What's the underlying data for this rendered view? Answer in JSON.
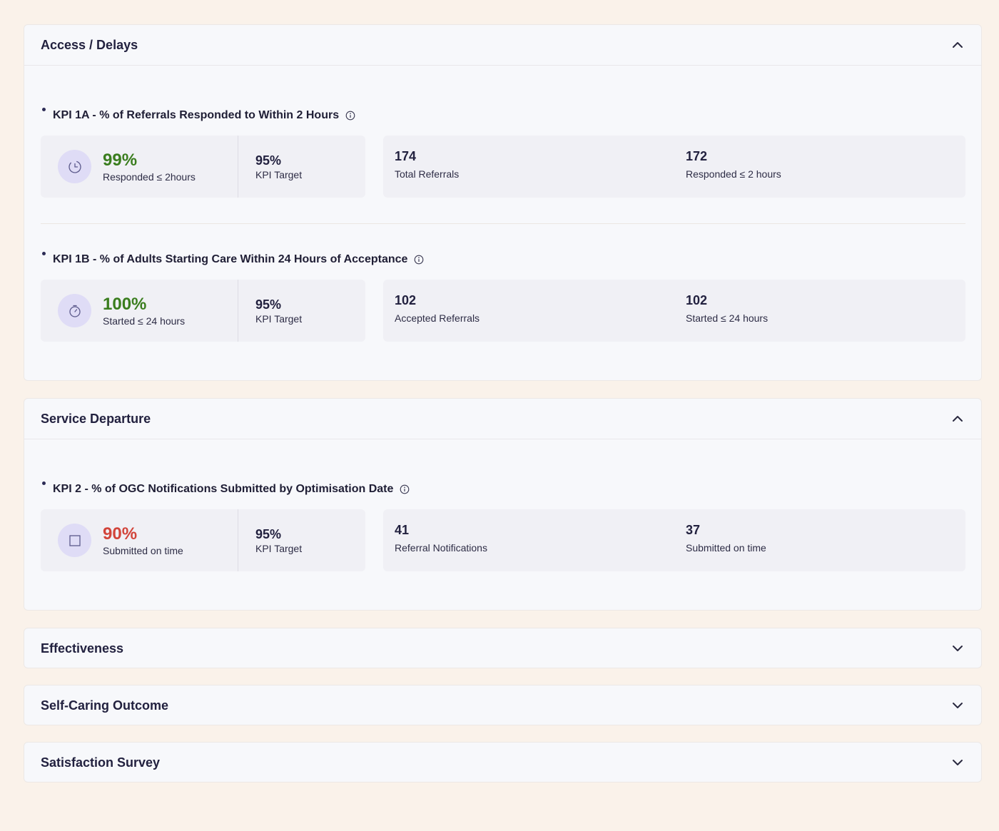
{
  "sections": [
    {
      "title": "Access / Delays",
      "expanded": true,
      "kpis": [
        {
          "title": "KPI 1A - % of Referrals Responded to Within 2 Hours",
          "icon": "clock-icon",
          "percent": "99%",
          "percent_status": "good",
          "percent_label": "Responded ≤ 2hours",
          "target_value": "95%",
          "target_label": "KPI Target",
          "stat1_value": "174",
          "stat1_label": "Total Referrals",
          "stat2_value": "172",
          "stat2_label": "Responded ≤ 2 hours"
        },
        {
          "title": "KPI 1B - % of Adults Starting Care Within 24 Hours of Acceptance",
          "icon": "stopwatch-icon",
          "percent": "100%",
          "percent_status": "good",
          "percent_label": "Started ≤ 24 hours",
          "target_value": "95%",
          "target_label": "KPI Target",
          "stat1_value": "102",
          "stat1_label": "Accepted Referrals",
          "stat2_value": "102",
          "stat2_label": "Started ≤ 24 hours"
        }
      ]
    },
    {
      "title": "Service Departure",
      "expanded": true,
      "kpis": [
        {
          "title": "KPI 2 - % of OGC Notifications Submitted by Optimisation Date",
          "icon": "checkbox-icon",
          "percent": "90%",
          "percent_status": "bad",
          "percent_label": "Submitted on time",
          "target_value": "95%",
          "target_label": "KPI Target",
          "stat1_value": "41",
          "stat1_label": "Referral Notifications",
          "stat2_value": "37",
          "stat2_label": "Submitted on time"
        }
      ]
    },
    {
      "title": "Effectiveness",
      "expanded": false
    },
    {
      "title": "Self-Caring Outcome",
      "expanded": false
    },
    {
      "title": "Satisfaction Survey",
      "expanded": false
    }
  ],
  "colors": {
    "page_background": "#faf2ea",
    "good": "#3a7d1e",
    "bad": "#d2443a",
    "icon_circle": "#dfdcf6"
  }
}
